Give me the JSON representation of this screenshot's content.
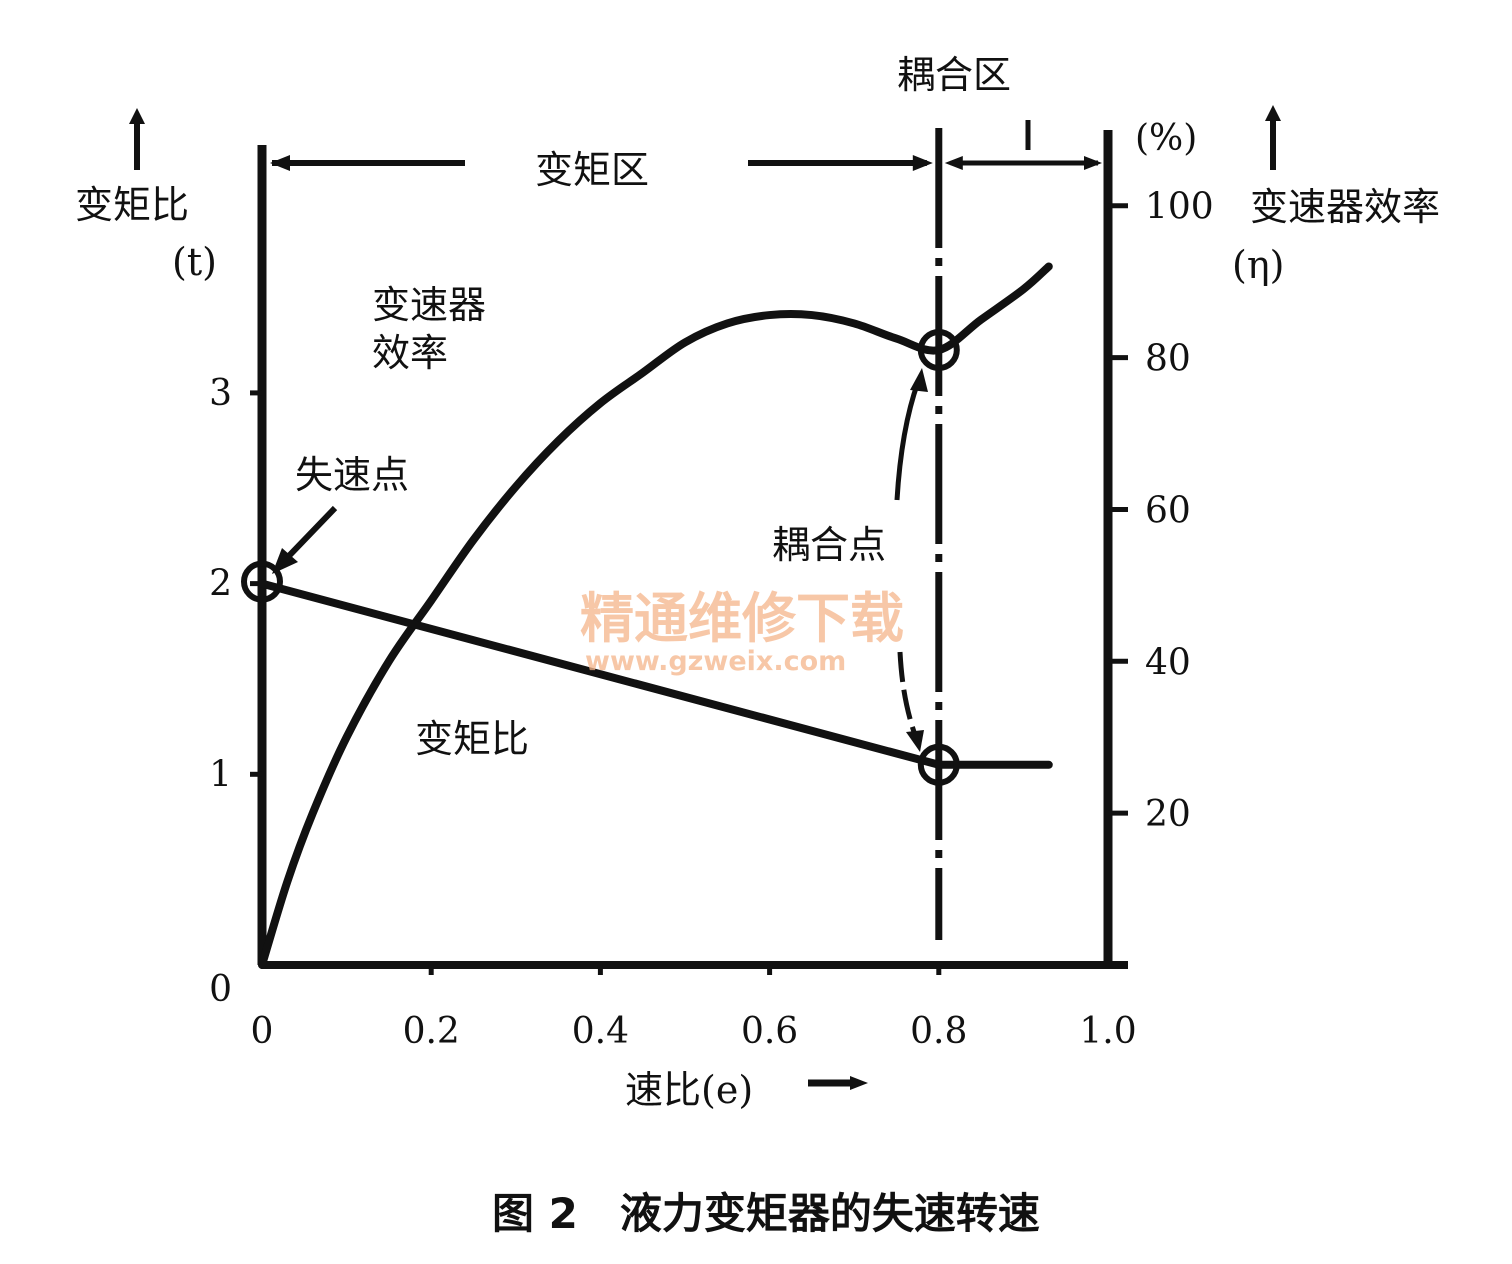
{
  "chart_data": {
    "type": "line",
    "x_axis": {
      "label": "速比(e)",
      "range": [
        0,
        1.0
      ],
      "ticks": [
        0,
        0.2,
        0.4,
        0.6,
        0.8,
        1.0
      ],
      "tick_labels": [
        "0",
        "0.2",
        "0.4",
        "0.6",
        "0.8",
        "1.0"
      ]
    },
    "y_axis_left": {
      "label": "变矩比",
      "unit": "(t)",
      "range": [
        0,
        4.3
      ],
      "ticks": [
        0,
        1,
        2,
        3
      ],
      "tick_labels": [
        "0",
        "1",
        "2",
        "3"
      ]
    },
    "y_axis_right": {
      "label": "变速器效率",
      "unit_symbol": "(η)",
      "unit": "(%)",
      "range": [
        0,
        108
      ],
      "ticks": [
        20,
        40,
        60,
        80,
        100
      ],
      "tick_labels": [
        "20",
        "40",
        "60",
        "80",
        "100"
      ]
    },
    "series": [
      {
        "name": "变速器效率",
        "axis": "right",
        "x": [
          0,
          0.03,
          0.06,
          0.1,
          0.15,
          0.2,
          0.25,
          0.3,
          0.35,
          0.4,
          0.45,
          0.5,
          0.55,
          0.6,
          0.65,
          0.7,
          0.75,
          0.8,
          0.85,
          0.9,
          0.93
        ],
        "values": [
          0,
          11,
          20,
          30,
          40,
          48,
          56,
          63,
          69,
          74,
          78,
          82,
          84.5,
          85.6,
          85.6,
          84.5,
          82.5,
          81,
          85,
          89,
          92
        ]
      },
      {
        "name": "变矩比",
        "axis": "left",
        "x": [
          0,
          0.8,
          0.93
        ],
        "values": [
          2.0,
          1.05,
          1.05
        ]
      }
    ],
    "regions": [
      {
        "label": "变矩区",
        "from": 0,
        "to": 0.8
      },
      {
        "label": "耦合区",
        "from": 0.8,
        "to": 1.0
      }
    ],
    "annotations": [
      {
        "label": "失速点",
        "x": 0,
        "y_left": 2.0
      },
      {
        "label": "耦合点",
        "x": 0.8,
        "y_left": 1.05,
        "y_right": 81
      }
    ],
    "grid": false,
    "caption": "图 2　液力变矩器的失速转速"
  },
  "labels": {
    "region_torque": "变矩区",
    "region_coupling": "耦合区",
    "curve_efficiency": "变速器效率",
    "curve_efficiency_line1": "变速器",
    "curve_efficiency_line2": "效率",
    "curve_torque": "变矩比",
    "stall_point": "失速点",
    "coupling_point": "耦合点",
    "left_axis_title": "变矩比",
    "left_axis_unit": "(t)",
    "right_axis_title": "变速器效率",
    "right_axis_unit_symbol": "(η)",
    "right_axis_unit": "(%)",
    "x_axis_title": "速比(e)",
    "caption": "图 2　液力变矩器的失速转速"
  },
  "watermark": {
    "title": "精通维修下载",
    "url": "www.gzweix.com",
    "color": "#f4b48a"
  },
  "colors": {
    "ink": "#111111"
  }
}
